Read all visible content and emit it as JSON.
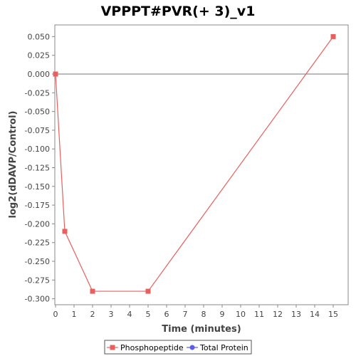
{
  "chart_data": {
    "type": "line",
    "title": "VPPPT#PVR(+ 3)_v1",
    "xlabel": "Time (minutes)",
    "ylabel": "log2(dDAVP/Control)",
    "xlim": [
      0,
      15.5
    ],
    "ylim": [
      -0.305,
      0.062
    ],
    "xticks": [
      "0",
      "1",
      "2",
      "3",
      "4",
      "5",
      "6",
      "7",
      "8",
      "9",
      "10",
      "11",
      "12",
      "13",
      "14",
      "15"
    ],
    "yticks": [
      "0.050",
      "0.025",
      "0.000",
      "-0.025",
      "-0.050",
      "-0.075",
      "-0.100",
      "-0.125",
      "-0.150",
      "-0.175",
      "-0.200",
      "-0.225",
      "-0.250",
      "-0.275",
      "-0.300"
    ],
    "grid": false,
    "legend_position": "bottom",
    "series": [
      {
        "name": "Phosphopeptide",
        "color": "#e8605e",
        "marker": "square",
        "x": [
          0,
          0.5,
          2,
          5,
          15
        ],
        "y": [
          0.0,
          -0.21,
          -0.29,
          -0.29,
          0.05
        ]
      },
      {
        "name": "Total Protein",
        "color": "#5b5bf0",
        "marker": "circle",
        "x": [],
        "y": []
      }
    ]
  }
}
